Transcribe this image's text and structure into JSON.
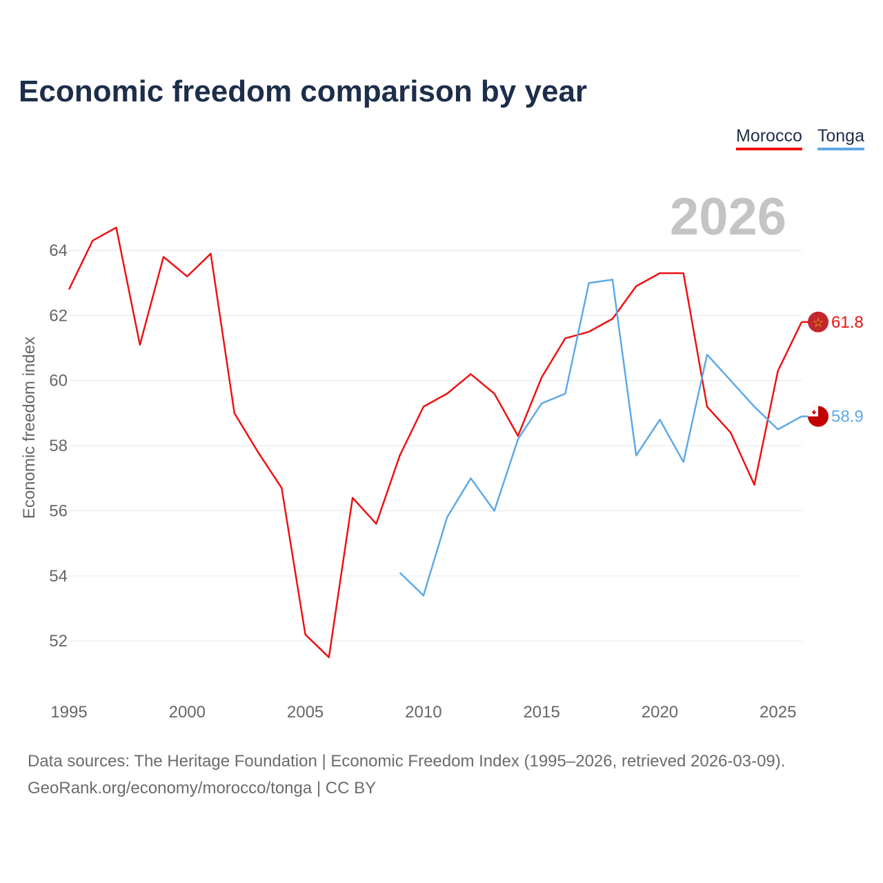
{
  "title": "Economic freedom comparison by year",
  "year_watermark": "2026",
  "legend": [
    {
      "label": "Morocco",
      "color": "#ee1111"
    },
    {
      "label": "Tonga",
      "color": "#5ca9e8"
    }
  ],
  "footer": {
    "line1": "Data sources: The Heritage Foundation | Economic Freedom Index (1995–2026, retrieved 2026-03-09).",
    "line2": "GeoRank.org/economy/morocco/tonga | CC BY"
  },
  "chart_data": {
    "type": "line",
    "title": "Economic freedom comparison by year",
    "xlabel": "",
    "ylabel": "Economic freedom index",
    "xlim": [
      1995,
      2026
    ],
    "ylim": [
      50.5,
      66.5
    ],
    "x_ticks": [
      1995,
      2000,
      2005,
      2010,
      2015,
      2020,
      2025
    ],
    "y_ticks": [
      52,
      54,
      56,
      58,
      60,
      62,
      64
    ],
    "grid": true,
    "series": [
      {
        "name": "Morocco",
        "color": "#ee1111",
        "end_label": "61.8",
        "flag": "morocco-flag",
        "x": [
          1995,
          1996,
          1997,
          1998,
          1999,
          2000,
          2001,
          2002,
          2003,
          2004,
          2005,
          2006,
          2007,
          2008,
          2009,
          2010,
          2011,
          2012,
          2013,
          2014,
          2015,
          2016,
          2017,
          2018,
          2019,
          2020,
          2021,
          2022,
          2023,
          2024,
          2025,
          2026
        ],
        "values": [
          62.8,
          64.3,
          64.7,
          61.1,
          63.8,
          63.2,
          63.9,
          59.0,
          57.8,
          56.7,
          52.2,
          51.5,
          56.4,
          55.6,
          57.7,
          59.2,
          59.6,
          60.2,
          59.6,
          58.3,
          60.1,
          61.3,
          61.5,
          61.9,
          62.9,
          63.3,
          63.3,
          59.2,
          58.4,
          56.8,
          60.3,
          61.8
        ]
      },
      {
        "name": "Tonga",
        "color": "#5ca9e8",
        "end_label": "58.9",
        "flag": "tonga-flag",
        "x": [
          2009,
          2010,
          2011,
          2012,
          2013,
          2014,
          2015,
          2016,
          2017,
          2018,
          2019,
          2020,
          2021,
          2022,
          2023,
          2024,
          2025,
          2026
        ],
        "values": [
          54.1,
          53.4,
          55.8,
          57.0,
          56.0,
          58.2,
          59.3,
          59.6,
          63.0,
          63.1,
          57.7,
          58.8,
          57.5,
          60.8,
          60.0,
          59.2,
          58.5,
          58.9
        ]
      }
    ]
  }
}
